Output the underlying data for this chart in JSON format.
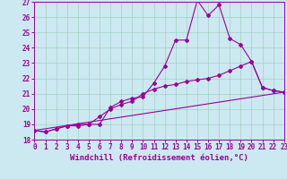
{
  "xlabel": "Windchill (Refroidissement éolien,°C)",
  "background_color": "#cce8f0",
  "line_color": "#990099",
  "xlim": [
    0,
    23
  ],
  "ylim": [
    18,
    27
  ],
  "xticks": [
    0,
    1,
    2,
    3,
    4,
    5,
    6,
    7,
    8,
    9,
    10,
    11,
    12,
    13,
    14,
    15,
    16,
    17,
    18,
    19,
    20,
    21,
    22,
    23
  ],
  "yticks": [
    18,
    19,
    20,
    21,
    22,
    23,
    24,
    25,
    26,
    27
  ],
  "series1_x": [
    0,
    1,
    2,
    3,
    4,
    5,
    6,
    7,
    8,
    9,
    10,
    11,
    12,
    13,
    14,
    15,
    16,
    17,
    18,
    19,
    20,
    21,
    22,
    23
  ],
  "series1_y": [
    18.6,
    18.5,
    18.7,
    18.9,
    18.9,
    19.0,
    19.0,
    20.1,
    20.5,
    20.7,
    20.8,
    21.7,
    22.8,
    24.5,
    24.5,
    27.1,
    26.1,
    26.8,
    24.6,
    24.2,
    23.1,
    21.4,
    21.2,
    21.1
  ],
  "series2_x": [
    0,
    1,
    2,
    3,
    4,
    5,
    6,
    7,
    8,
    9,
    10,
    11,
    12,
    13,
    14,
    15,
    16,
    17,
    18,
    19,
    20,
    21,
    22,
    23
  ],
  "series2_y": [
    18.6,
    18.5,
    18.7,
    18.9,
    19.0,
    19.0,
    19.5,
    20.0,
    20.3,
    20.5,
    21.0,
    21.3,
    21.5,
    21.6,
    21.8,
    21.9,
    22.0,
    22.2,
    22.5,
    22.8,
    23.1,
    21.4,
    21.2,
    21.1
  ],
  "series3_x": [
    0,
    23
  ],
  "series3_y": [
    18.6,
    21.1
  ],
  "grid_color": "#99ccbb",
  "marker": "D",
  "marker_size": 2,
  "linewidth": 0.8,
  "xlabel_fontsize": 6.5,
  "tick_fontsize": 5.5
}
